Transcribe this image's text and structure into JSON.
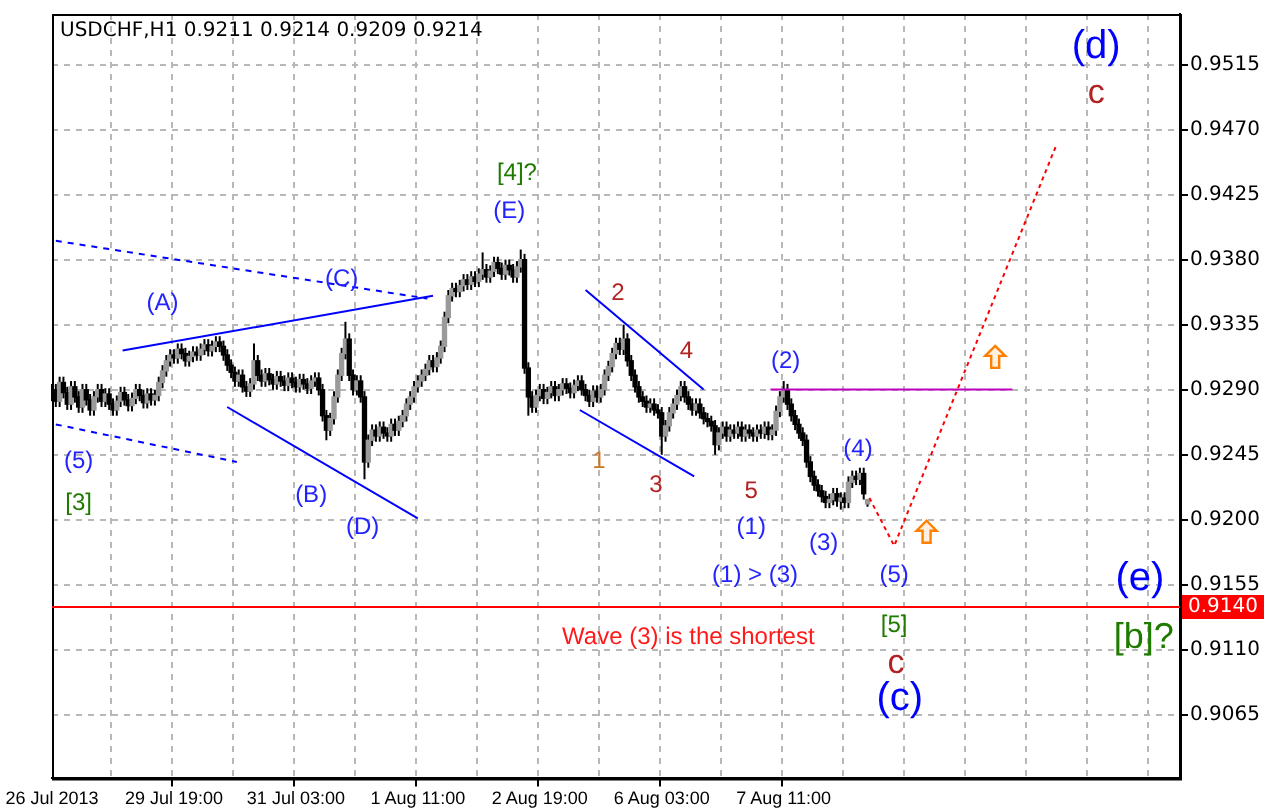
{
  "chart_data": {
    "type": "candlestick",
    "title": "USDCHF,H1 0.9211 0.9214 0.9209 0.9214",
    "categories": [
      "26 Jul 2013",
      null,
      null,
      null,
      null,
      null,
      null,
      null,
      null,
      null,
      null,
      null,
      null,
      null,
      null,
      null,
      null,
      null,
      null,
      null,
      null,
      null,
      null,
      null,
      null,
      null,
      null,
      null,
      null,
      null,
      null,
      null,
      "29 Jul 19:00",
      null,
      null,
      null,
      null,
      null,
      null,
      null,
      null,
      null,
      null,
      null,
      null,
      null,
      null,
      null,
      null,
      null,
      null,
      null,
      null,
      null,
      null,
      null,
      null,
      null,
      null,
      null,
      null,
      null,
      null,
      null,
      "31 Jul 03:00",
      null,
      null,
      null,
      null,
      null,
      null,
      null,
      null,
      null,
      null,
      null,
      null,
      null,
      null,
      null,
      null,
      null,
      null,
      null,
      null,
      null,
      null,
      null,
      null,
      null,
      null,
      null,
      null,
      null,
      null,
      null,
      "1 Aug 11:00",
      null,
      null,
      null,
      null,
      null,
      null,
      null,
      null,
      null,
      null,
      null,
      null,
      null,
      null,
      null,
      null,
      null,
      null,
      null,
      null,
      null,
      null,
      null,
      null,
      null,
      null,
      null,
      null,
      null,
      null,
      null,
      "2 Aug 19:00",
      null,
      null,
      null,
      null,
      null,
      null,
      null,
      null,
      null,
      null,
      null,
      null,
      null,
      null,
      null,
      null,
      null,
      null,
      null,
      null,
      null,
      null,
      null,
      null,
      null,
      null,
      null,
      null,
      null,
      null,
      null,
      "6 Aug 03:00",
      null,
      null,
      null,
      null,
      null,
      null,
      null,
      null,
      null,
      null,
      null,
      null,
      null,
      null,
      null,
      null,
      null,
      null,
      null,
      null,
      null,
      null,
      null,
      null,
      null,
      null,
      null,
      null,
      null,
      null,
      null,
      "7 Aug 11:00",
      null,
      null,
      null,
      null,
      null,
      null,
      null,
      null,
      null,
      null,
      null,
      null,
      null,
      null,
      null,
      null,
      null,
      null,
      null,
      null,
      null,
      null,
      null,
      null,
      null,
      null,
      null,
      null,
      null,
      null,
      null,
      null,
      null,
      null,
      null,
      null,
      null,
      null,
      null,
      null,
      null,
      null,
      null,
      null,
      null,
      null,
      null,
      null,
      null,
      null,
      null,
      null,
      null,
      null,
      null,
      null,
      null,
      null,
      null,
      null,
      null,
      null,
      null,
      null,
      null,
      null,
      null,
      null,
      null,
      null,
      null,
      null,
      null,
      null,
      null,
      null,
      null,
      null,
      null,
      null,
      null,
      null,
      null,
      null,
      null,
      null,
      null,
      null,
      null,
      null,
      null,
      null,
      null,
      null,
      null,
      null,
      null,
      null,
      null,
      null,
      null,
      null,
      null,
      null
    ],
    "ohlc": [
      [
        0.9286,
        0.9294,
        0.9282,
        0.929
      ],
      [
        0.929,
        0.9294,
        0.9278,
        0.9282
      ],
      [
        0.9282,
        0.9299,
        0.9278,
        0.9295
      ],
      [
        0.9295,
        0.9299,
        0.9284,
        0.9288
      ],
      [
        0.9288,
        0.9292,
        0.9276,
        0.928
      ],
      [
        0.928,
        0.9296,
        0.9276,
        0.9292
      ],
      [
        0.9292,
        0.9296,
        0.9281,
        0.9285
      ],
      [
        0.9285,
        0.9289,
        0.9274,
        0.9278
      ],
      [
        0.9278,
        0.9294,
        0.9274,
        0.929
      ],
      [
        0.929,
        0.9294,
        0.9279,
        0.9283
      ],
      [
        0.9283,
        0.9287,
        0.9272,
        0.9276
      ],
      [
        0.9276,
        0.9289,
        0.9272,
        0.9285
      ],
      [
        0.9285,
        0.9294,
        0.9281,
        0.929
      ],
      [
        0.929,
        0.9294,
        0.9278,
        0.9282
      ],
      [
        0.9282,
        0.9291,
        0.9278,
        0.9287
      ],
      [
        0.9287,
        0.9291,
        0.9276,
        0.928
      ],
      [
        0.928,
        0.9284,
        0.9272,
        0.9276
      ],
      [
        0.9276,
        0.9286,
        0.9272,
        0.9282
      ],
      [
        0.9282,
        0.9292,
        0.9278,
        0.9288
      ],
      [
        0.9288,
        0.9292,
        0.9279,
        0.9283
      ],
      [
        0.9283,
        0.9287,
        0.9275,
        0.9279
      ],
      [
        0.9279,
        0.9288,
        0.9275,
        0.9284
      ],
      [
        0.9284,
        0.9294,
        0.928,
        0.929
      ],
      [
        0.929,
        0.9294,
        0.9282,
        0.9286
      ],
      [
        0.9286,
        0.929,
        0.9277,
        0.9281
      ],
      [
        0.9281,
        0.9291,
        0.9277,
        0.9287
      ],
      [
        0.9287,
        0.9291,
        0.9279,
        0.9283
      ],
      [
        0.9283,
        0.929,
        0.9279,
        0.9286
      ],
      [
        0.9286,
        0.9299,
        0.9282,
        0.9295
      ],
      [
        0.9295,
        0.9307,
        0.9291,
        0.9303
      ],
      [
        0.9303,
        0.9314,
        0.9299,
        0.931
      ],
      [
        0.931,
        0.9318,
        0.9306,
        0.9314
      ],
      [
        0.9314,
        0.9318,
        0.9308,
        0.9312
      ],
      [
        0.9312,
        0.9322,
        0.9308,
        0.9318
      ],
      [
        0.9318,
        0.9322,
        0.9311,
        0.9315
      ],
      [
        0.9315,
        0.9319,
        0.9306,
        0.931
      ],
      [
        0.931,
        0.9317,
        0.9306,
        0.9313
      ],
      [
        0.9313,
        0.932,
        0.9309,
        0.9316
      ],
      [
        0.9316,
        0.932,
        0.931,
        0.9314
      ],
      [
        0.9314,
        0.9322,
        0.931,
        0.9318
      ],
      [
        0.9318,
        0.9325,
        0.9314,
        0.9321
      ],
      [
        0.9321,
        0.9325,
        0.9313,
        0.9317
      ],
      [
        0.9317,
        0.9324,
        0.9313,
        0.932
      ],
      [
        0.932,
        0.9327,
        0.9316,
        0.9323
      ],
      [
        0.9323,
        0.9327,
        0.9316,
        0.932
      ],
      [
        0.932,
        0.9324,
        0.931,
        0.9314
      ],
      [
        0.9314,
        0.9318,
        0.9303,
        0.9307
      ],
      [
        0.9307,
        0.9311,
        0.9298,
        0.9302
      ],
      [
        0.9302,
        0.9306,
        0.9292,
        0.9296
      ],
      [
        0.9296,
        0.9304,
        0.9292,
        0.93
      ],
      [
        0.93,
        0.9304,
        0.9288,
        0.9292
      ],
      [
        0.9292,
        0.9296,
        0.9285,
        0.9289
      ],
      [
        0.9289,
        0.9298,
        0.9285,
        0.9294
      ],
      [
        0.9294,
        0.9322,
        0.929,
        0.931
      ],
      [
        0.931,
        0.9314,
        0.9296,
        0.93
      ],
      [
        0.93,
        0.9304,
        0.9292,
        0.9296
      ],
      [
        0.9296,
        0.9305,
        0.9292,
        0.9301
      ],
      [
        0.9301,
        0.9305,
        0.9293,
        0.9297
      ],
      [
        0.9297,
        0.9301,
        0.929,
        0.9294
      ],
      [
        0.9294,
        0.9303,
        0.929,
        0.9299
      ],
      [
        0.9299,
        0.9303,
        0.9292,
        0.9296
      ],
      [
        0.9296,
        0.93,
        0.9289,
        0.9293
      ],
      [
        0.9293,
        0.9302,
        0.9289,
        0.9298
      ],
      [
        0.9298,
        0.9302,
        0.9291,
        0.9295
      ],
      [
        0.9295,
        0.9299,
        0.9288,
        0.9292
      ],
      [
        0.9292,
        0.9301,
        0.9288,
        0.9297
      ],
      [
        0.9297,
        0.9301,
        0.929,
        0.9294
      ],
      [
        0.9294,
        0.9298,
        0.9287,
        0.9291
      ],
      [
        0.9291,
        0.93,
        0.9287,
        0.9296
      ],
      [
        0.9296,
        0.9302,
        0.9292,
        0.9298
      ],
      [
        0.9298,
        0.9302,
        0.9286,
        0.929
      ],
      [
        0.929,
        0.9294,
        0.9268,
        0.9272
      ],
      [
        0.9272,
        0.9276,
        0.9255,
        0.9262
      ],
      [
        0.9262,
        0.9274,
        0.9258,
        0.927
      ],
      [
        0.927,
        0.9289,
        0.9266,
        0.9285
      ],
      [
        0.9285,
        0.9304,
        0.9281,
        0.93
      ],
      [
        0.93,
        0.9319,
        0.9296,
        0.9315
      ],
      [
        0.9315,
        0.9337,
        0.9311,
        0.9325
      ],
      [
        0.9325,
        0.9329,
        0.9296,
        0.93
      ],
      [
        0.93,
        0.9304,
        0.9286,
        0.929
      ],
      [
        0.929,
        0.93,
        0.9286,
        0.9296
      ],
      [
        0.9296,
        0.93,
        0.9281,
        0.9285
      ],
      [
        0.9285,
        0.9289,
        0.9228,
        0.924
      ],
      [
        0.924,
        0.9259,
        0.9236,
        0.9255
      ],
      [
        0.9255,
        0.9266,
        0.9251,
        0.9262
      ],
      [
        0.9262,
        0.9266,
        0.9254,
        0.9258
      ],
      [
        0.9258,
        0.9268,
        0.9254,
        0.9264
      ],
      [
        0.9264,
        0.9268,
        0.9256,
        0.926
      ],
      [
        0.926,
        0.9264,
        0.9254,
        0.9258
      ],
      [
        0.9258,
        0.927,
        0.9254,
        0.9266
      ],
      [
        0.9266,
        0.927,
        0.9258,
        0.9262
      ],
      [
        0.9262,
        0.9272,
        0.9258,
        0.9268
      ],
      [
        0.9268,
        0.9276,
        0.9264,
        0.9272
      ],
      [
        0.9272,
        0.9284,
        0.9268,
        0.928
      ],
      [
        0.928,
        0.9289,
        0.9276,
        0.9285
      ],
      [
        0.9285,
        0.9296,
        0.9281,
        0.9292
      ],
      [
        0.9292,
        0.93,
        0.9288,
        0.9296
      ],
      [
        0.9296,
        0.9304,
        0.9292,
        0.93
      ],
      [
        0.93,
        0.9308,
        0.9296,
        0.9304
      ],
      [
        0.9304,
        0.9314,
        0.93,
        0.931
      ],
      [
        0.931,
        0.9314,
        0.9302,
        0.9306
      ],
      [
        0.9306,
        0.9316,
        0.9302,
        0.9312
      ],
      [
        0.9312,
        0.9324,
        0.9308,
        0.932
      ],
      [
        0.932,
        0.9344,
        0.9316,
        0.934
      ],
      [
        0.934,
        0.9359,
        0.9336,
        0.9355
      ],
      [
        0.9355,
        0.9364,
        0.9351,
        0.936
      ],
      [
        0.936,
        0.9364,
        0.9354,
        0.9358
      ],
      [
        0.9358,
        0.9366,
        0.9354,
        0.9362
      ],
      [
        0.9362,
        0.937,
        0.9358,
        0.9366
      ],
      [
        0.9366,
        0.937,
        0.9359,
        0.9363
      ],
      [
        0.9363,
        0.9372,
        0.9359,
        0.9368
      ],
      [
        0.9368,
        0.9372,
        0.9361,
        0.9365
      ],
      [
        0.9365,
        0.9374,
        0.9361,
        0.937
      ],
      [
        0.937,
        0.9385,
        0.9366,
        0.9373
      ],
      [
        0.9373,
        0.9377,
        0.9364,
        0.9368
      ],
      [
        0.9368,
        0.9376,
        0.9364,
        0.9372
      ],
      [
        0.9372,
        0.9382,
        0.9368,
        0.9378
      ],
      [
        0.9378,
        0.9382,
        0.937,
        0.9374
      ],
      [
        0.9374,
        0.9378,
        0.9366,
        0.937
      ],
      [
        0.937,
        0.938,
        0.9366,
        0.9376
      ],
      [
        0.9376,
        0.938,
        0.9369,
        0.9373
      ],
      [
        0.9373,
        0.9377,
        0.9364,
        0.9368
      ],
      [
        0.9368,
        0.9379,
        0.9364,
        0.9375
      ],
      [
        0.9375,
        0.9387,
        0.9371,
        0.938
      ],
      [
        0.938,
        0.9384,
        0.9301,
        0.9305
      ],
      [
        0.9305,
        0.9309,
        0.9272,
        0.9285
      ],
      [
        0.9285,
        0.9289,
        0.9274,
        0.9278
      ],
      [
        0.9278,
        0.929,
        0.9274,
        0.9286
      ],
      [
        0.9286,
        0.9294,
        0.9282,
        0.929
      ],
      [
        0.929,
        0.9294,
        0.928,
        0.9284
      ],
      [
        0.9284,
        0.9292,
        0.928,
        0.9288
      ],
      [
        0.9288,
        0.9296,
        0.9284,
        0.9292
      ],
      [
        0.9292,
        0.9296,
        0.9282,
        0.9286
      ],
      [
        0.9286,
        0.9294,
        0.9282,
        0.929
      ],
      [
        0.929,
        0.9298,
        0.9286,
        0.9294
      ],
      [
        0.9294,
        0.9298,
        0.9287,
        0.9291
      ],
      [
        0.9291,
        0.9295,
        0.9284,
        0.9288
      ],
      [
        0.9288,
        0.9297,
        0.9284,
        0.9293
      ],
      [
        0.9293,
        0.93,
        0.9289,
        0.9296
      ],
      [
        0.9296,
        0.93,
        0.9286,
        0.929
      ],
      [
        0.929,
        0.9294,
        0.9282,
        0.9286
      ],
      [
        0.9286,
        0.929,
        0.9278,
        0.9282
      ],
      [
        0.9282,
        0.9293,
        0.9278,
        0.9289
      ],
      [
        0.9289,
        0.9293,
        0.9281,
        0.9285
      ],
      [
        0.9285,
        0.9294,
        0.9281,
        0.929
      ],
      [
        0.929,
        0.9304,
        0.9286,
        0.93
      ],
      [
        0.93,
        0.931,
        0.9296,
        0.9306
      ],
      [
        0.9306,
        0.9319,
        0.9302,
        0.9315
      ],
      [
        0.9315,
        0.9326,
        0.9311,
        0.9322
      ],
      [
        0.9322,
        0.9326,
        0.9314,
        0.9318
      ],
      [
        0.9318,
        0.9335,
        0.9314,
        0.9325
      ],
      [
        0.9325,
        0.9329,
        0.9306,
        0.931
      ],
      [
        0.931,
        0.9314,
        0.9296,
        0.93
      ],
      [
        0.93,
        0.9304,
        0.9288,
        0.9292
      ],
      [
        0.9292,
        0.9296,
        0.9281,
        0.9285
      ],
      [
        0.9285,
        0.9289,
        0.9278,
        0.9282
      ],
      [
        0.9282,
        0.9286,
        0.9274,
        0.9278
      ],
      [
        0.9278,
        0.9284,
        0.9274,
        0.928
      ],
      [
        0.928,
        0.9284,
        0.9272,
        0.9276
      ],
      [
        0.9276,
        0.928,
        0.927,
        0.9274
      ],
      [
        0.9274,
        0.9278,
        0.9245,
        0.9258
      ],
      [
        0.9258,
        0.9269,
        0.9254,
        0.9265
      ],
      [
        0.9265,
        0.9278,
        0.9261,
        0.9274
      ],
      [
        0.9274,
        0.9284,
        0.927,
        0.928
      ],
      [
        0.928,
        0.929,
        0.9276,
        0.9286
      ],
      [
        0.9286,
        0.9296,
        0.9282,
        0.9292
      ],
      [
        0.9292,
        0.9296,
        0.9281,
        0.9285
      ],
      [
        0.9285,
        0.9289,
        0.9276,
        0.928
      ],
      [
        0.928,
        0.9284,
        0.9272,
        0.9276
      ],
      [
        0.9276,
        0.9284,
        0.9272,
        0.928
      ],
      [
        0.928,
        0.9284,
        0.927,
        0.9274
      ],
      [
        0.9274,
        0.9278,
        0.9266,
        0.927
      ],
      [
        0.927,
        0.9274,
        0.9264,
        0.9268
      ],
      [
        0.9268,
        0.9272,
        0.9261,
        0.9265
      ],
      [
        0.9265,
        0.9269,
        0.9245,
        0.9252
      ],
      [
        0.9252,
        0.9264,
        0.9248,
        0.926
      ],
      [
        0.926,
        0.9268,
        0.9256,
        0.9264
      ],
      [
        0.9264,
        0.9268,
        0.9254,
        0.9258
      ],
      [
        0.9258,
        0.9266,
        0.9254,
        0.9262
      ],
      [
        0.9262,
        0.9266,
        0.9256,
        0.926
      ],
      [
        0.926,
        0.9268,
        0.9256,
        0.9264
      ],
      [
        0.9264,
        0.9268,
        0.9254,
        0.9258
      ],
      [
        0.9258,
        0.9266,
        0.9254,
        0.9262
      ],
      [
        0.9262,
        0.9266,
        0.9256,
        0.926
      ],
      [
        0.926,
        0.9264,
        0.9254,
        0.9258
      ],
      [
        0.9258,
        0.9266,
        0.9254,
        0.9262
      ],
      [
        0.9262,
        0.9266,
        0.9256,
        0.926
      ],
      [
        0.926,
        0.9268,
        0.9256,
        0.9264
      ],
      [
        0.9264,
        0.9268,
        0.9255,
        0.9259
      ],
      [
        0.9259,
        0.9266,
        0.9255,
        0.9262
      ],
      [
        0.9262,
        0.9279,
        0.9258,
        0.9275
      ],
      [
        0.9275,
        0.9289,
        0.9271,
        0.9285
      ],
      [
        0.9285,
        0.9296,
        0.9281,
        0.929
      ],
      [
        0.929,
        0.9294,
        0.9276,
        0.928
      ],
      [
        0.928,
        0.9284,
        0.9268,
        0.9272
      ],
      [
        0.9272,
        0.9276,
        0.9262,
        0.9266
      ],
      [
        0.9266,
        0.927,
        0.9256,
        0.926
      ],
      [
        0.926,
        0.9264,
        0.9251,
        0.9255
      ],
      [
        0.9255,
        0.9259,
        0.9236,
        0.924
      ],
      [
        0.924,
        0.9244,
        0.9226,
        0.923
      ],
      [
        0.923,
        0.9234,
        0.922,
        0.9224
      ],
      [
        0.9224,
        0.9228,
        0.9216,
        0.922
      ],
      [
        0.922,
        0.9224,
        0.9212,
        0.9216
      ],
      [
        0.9216,
        0.922,
        0.9208,
        0.9212
      ],
      [
        0.9212,
        0.9218,
        0.9208,
        0.9214
      ],
      [
        0.9214,
        0.9222,
        0.921,
        0.9218
      ],
      [
        0.9218,
        0.9222,
        0.9209,
        0.9213
      ],
      [
        0.9213,
        0.9219,
        0.9207,
        0.9215
      ],
      [
        0.9215,
        0.9219,
        0.9208,
        0.9212
      ],
      [
        0.9212,
        0.923,
        0.9208,
        0.9226
      ],
      [
        0.9226,
        0.9234,
        0.9222,
        0.923
      ],
      [
        0.923,
        0.9234,
        0.9224,
        0.9228
      ],
      [
        0.9228,
        0.9236,
        0.9224,
        0.9232
      ],
      [
        0.9232,
        0.9236,
        0.9214,
        0.9218
      ],
      [
        0.9211,
        0.9214,
        0.9209,
        0.9214
      ],
      null,
      null,
      null,
      null,
      null,
      null,
      null,
      null,
      null,
      null,
      null,
      null,
      null,
      null,
      null,
      null,
      null,
      null,
      null,
      null,
      null,
      null,
      null,
      null,
      null,
      null,
      null,
      null,
      null,
      null,
      null,
      null,
      null,
      null,
      null,
      null,
      null,
      null,
      null,
      null,
      null,
      null,
      null,
      null,
      null,
      null,
      null,
      null,
      null,
      null,
      null,
      null,
      null,
      null,
      null,
      null,
      null,
      null,
      null,
      null,
      null,
      null,
      null,
      null,
      null,
      null,
      null,
      null,
      null,
      null,
      null,
      null,
      null,
      null,
      null,
      null,
      null,
      null,
      null,
      null,
      null,
      null
    ],
    "ylim": [
      0.9021,
      0.955
    ],
    "yticks": [
      {
        "value": 0.9065,
        "label": "0.9065"
      },
      {
        "value": 0.911,
        "label": "0.9110"
      },
      {
        "value": 0.9155,
        "label": "0.9155"
      },
      {
        "value": 0.92,
        "label": "0.9200"
      },
      {
        "value": 0.9245,
        "label": "0.9245"
      },
      {
        "value": 0.929,
        "label": "0.9290"
      },
      {
        "value": 0.9335,
        "label": "0.9335"
      },
      {
        "value": 0.938,
        "label": "0.9380"
      },
      {
        "value": 0.9425,
        "label": "0.9425"
      },
      {
        "value": 0.947,
        "label": "0.9470"
      },
      {
        "value": 0.9515,
        "label": "0.9515"
      }
    ],
    "grid": true,
    "ref_lines": [
      {
        "axis": "y",
        "value": 0.914,
        "label": "0.9140",
        "color": "#ff0000"
      }
    ],
    "annotations": [
      "(5)",
      "[3]",
      "(A)",
      "(B)",
      "(C)",
      "(D)",
      "(E)",
      "[4]?",
      "1",
      "2",
      "3",
      "4",
      "5",
      "(1)",
      "(1) > (3)",
      "(2)",
      "(3)",
      "(4)",
      "(5)",
      "[5]",
      "c",
      "(c)",
      "(d)",
      "c",
      "(e)",
      "[b]?",
      "Wave (3) is the shortest"
    ]
  }
}
